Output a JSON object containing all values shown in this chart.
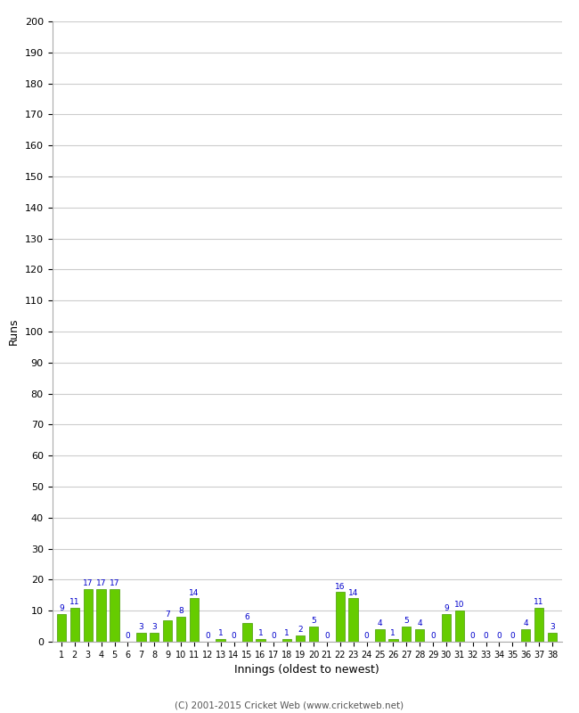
{
  "xlabel": "Innings (oldest to newest)",
  "ylabel": "Runs",
  "ylim": [
    0,
    200
  ],
  "yticks": [
    0,
    10,
    20,
    30,
    40,
    50,
    60,
    70,
    80,
    90,
    100,
    110,
    120,
    130,
    140,
    150,
    160,
    170,
    180,
    190,
    200
  ],
  "innings": [
    1,
    2,
    3,
    4,
    5,
    6,
    7,
    8,
    9,
    10,
    11,
    12,
    13,
    14,
    15,
    16,
    17,
    18,
    19,
    20,
    21,
    22,
    23,
    24,
    25,
    26,
    27,
    28,
    29,
    30,
    31,
    32,
    33,
    34,
    35,
    36,
    37,
    38
  ],
  "values": [
    9,
    11,
    17,
    17,
    17,
    0,
    3,
    3,
    7,
    8,
    14,
    0,
    1,
    0,
    6,
    1,
    0,
    1,
    2,
    5,
    0,
    16,
    14,
    0,
    4,
    1,
    5,
    4,
    0,
    9,
    10,
    0,
    0,
    0,
    0,
    4,
    11,
    3
  ],
  "bar_color": "#66cc00",
  "bar_edge_color": "#449900",
  "label_color": "#0000cc",
  "background_color": "#ffffff",
  "grid_color": "#cccccc",
  "copyright": "(C) 2001-2015 Cricket Web (www.cricketweb.net)"
}
